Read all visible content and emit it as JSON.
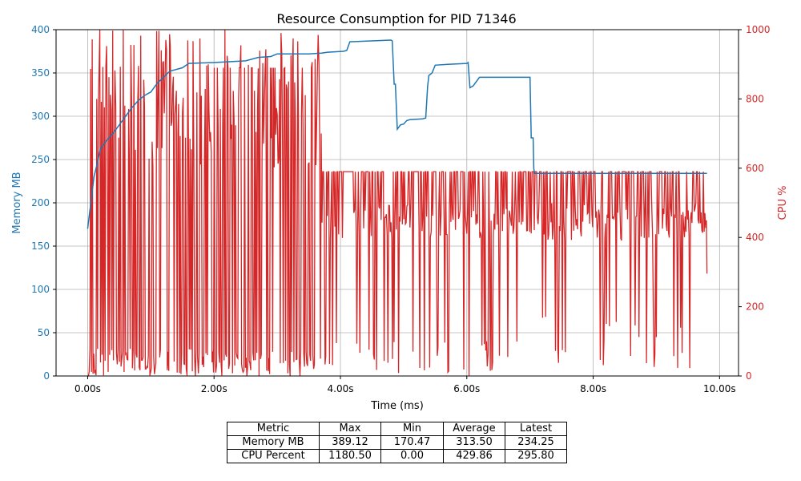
{
  "chart_data": {
    "type": "line",
    "title": "Resource Consumption for PID 71346",
    "xlabel": "Time (ms)",
    "ylabel_left": "Memory MB",
    "ylabel_right": "CPU %",
    "xlim": [
      -0.5,
      10.3
    ],
    "ylim_left": [
      0,
      400
    ],
    "ylim_right": [
      0,
      1000
    ],
    "x_ticks": [
      "0.00s",
      "2.00s",
      "4.00s",
      "6.00s",
      "8.00s",
      "10.00s"
    ],
    "left_ticks": [
      "0",
      "50",
      "100",
      "150",
      "200",
      "250",
      "300",
      "350",
      "400"
    ],
    "right_ticks": [
      "0",
      "200",
      "400",
      "600",
      "800",
      "1000"
    ],
    "grid": true,
    "colors": {
      "memory": "#1f77b4",
      "cpu": "#d62728"
    },
    "memory_series": {
      "x": [
        0.0,
        0.05,
        0.1,
        0.15,
        0.2,
        0.3,
        0.4,
        0.5,
        0.6,
        0.7,
        0.8,
        0.9,
        1.0,
        1.1,
        1.2,
        1.3,
        1.5,
        1.6,
        2.0,
        2.5,
        2.7,
        2.9,
        3.0,
        3.5,
        3.7,
        3.8,
        4.05,
        4.1,
        4.15,
        4.8,
        4.82,
        4.85,
        4.87,
        4.9,
        4.95,
        5.0,
        5.05,
        5.1,
        5.3,
        5.35,
        5.38,
        5.4,
        5.45,
        5.5,
        5.7,
        6.0,
        6.02,
        6.05,
        6.1,
        6.2,
        6.99,
        7.0,
        7.02,
        7.05,
        7.06,
        7.07,
        7.1,
        8.0,
        9.0,
        9.8
      ],
      "y": [
        170,
        200,
        230,
        245,
        262,
        272,
        280,
        290,
        300,
        310,
        318,
        324,
        328,
        338,
        345,
        352,
        356,
        361,
        362,
        364,
        368,
        369,
        372,
        372,
        373,
        374,
        375,
        376,
        386,
        388,
        387,
        337,
        337,
        285,
        290,
        291,
        295,
        296,
        297,
        298,
        335,
        347,
        350,
        359,
        360,
        361,
        362,
        333,
        335,
        345,
        345,
        345,
        275,
        275,
        240,
        234,
        234,
        234,
        234,
        234
      ]
    },
    "cpu_series": {
      "note_values_only": true
    }
  },
  "stats_table": {
    "headers": [
      "Metric",
      "Max",
      "Min",
      "Average",
      "Latest"
    ],
    "rows": [
      [
        "Memory MB",
        "389.12",
        "170.47",
        "313.50",
        "234.25"
      ],
      [
        "CPU Percent",
        "1180.50",
        "0.00",
        "429.86",
        "295.80"
      ]
    ]
  }
}
